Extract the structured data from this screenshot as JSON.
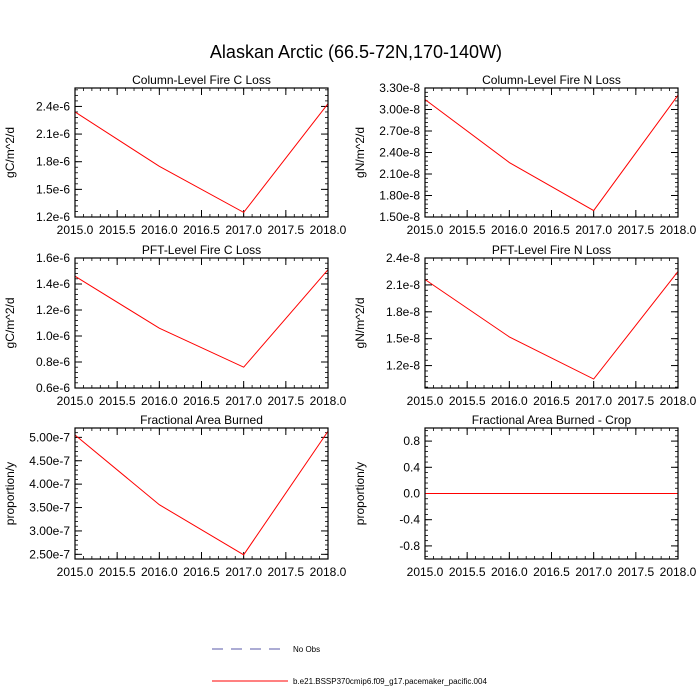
{
  "figure_title": "Alaskan Arctic (66.5-72N,170-140W)",
  "colors": {
    "series": "#ff0000",
    "obs": "#5a5aa8",
    "axis": "#000000",
    "background": "#ffffff"
  },
  "legend": {
    "obs_label": "No Obs",
    "model_label": "b.e21.BSSP370cmip6.f09_g17.pacemaker_pacific.004"
  },
  "chart_data": [
    {
      "type": "line",
      "title": "Column-Level Fire C Loss",
      "ylabel": "gC/m^2/d",
      "xlim": [
        2015.0,
        2018.0
      ],
      "ylim": [
        1.2e-06,
        2.6e-06
      ],
      "yticks": [
        1.2e-06,
        1.5e-06,
        1.8e-06,
        2.1e-06,
        2.4e-06
      ],
      "yticklabels": [
        "1.2e-6",
        "1.5e-6",
        "1.8e-6",
        "2.1e-6",
        "2.4e-6"
      ],
      "xticks": [
        2015.0,
        2015.5,
        2016.0,
        2016.5,
        2017.0,
        2017.5,
        2018.0
      ],
      "xticklabels": [
        "2015.0",
        "2015.5",
        "2016.0",
        "2016.5",
        "2017.0",
        "2017.5",
        "2018.0"
      ],
      "series": [
        {
          "x": [
            2015,
            2016,
            2017,
            2018
          ],
          "values": [
            2.34e-06,
            1.75e-06,
            1.25e-06,
            2.43e-06
          ]
        }
      ]
    },
    {
      "type": "line",
      "title": "Column-Level Fire N Loss",
      "ylabel": "gN/m^2/d",
      "xlim": [
        2015.0,
        2018.0
      ],
      "ylim": [
        1.5e-08,
        3.3e-08
      ],
      "yticks": [
        1.5e-08,
        1.8e-08,
        2.1e-08,
        2.4e-08,
        2.7e-08,
        3e-08,
        3.3e-08
      ],
      "yticklabels": [
        "1.50e-8",
        "1.80e-8",
        "2.10e-8",
        "2.40e-8",
        "2.70e-8",
        "3.00e-8",
        "3.30e-8"
      ],
      "xticks": [
        2015.0,
        2015.5,
        2016.0,
        2016.5,
        2017.0,
        2017.5,
        2018.0
      ],
      "xticklabels": [
        "2015.0",
        "2015.5",
        "2016.0",
        "2016.5",
        "2017.0",
        "2017.5",
        "2018.0"
      ],
      "series": [
        {
          "x": [
            2015,
            2016,
            2017,
            2018
          ],
          "values": [
            3.14e-08,
            2.26e-08,
            1.59e-08,
            3.2e-08
          ]
        }
      ]
    },
    {
      "type": "line",
      "title": "PFT-Level Fire C Loss",
      "ylabel": "gC/m^2/d",
      "xlim": [
        2015.0,
        2018.0
      ],
      "ylim": [
        6e-07,
        1.6e-06
      ],
      "yticks": [
        6e-07,
        8e-07,
        1e-06,
        1.2e-06,
        1.4e-06,
        1.6e-06
      ],
      "yticklabels": [
        "0.6e-6",
        "0.8e-6",
        "1.0e-6",
        "1.2e-6",
        "1.4e-6",
        "1.6e-6"
      ],
      "xticks": [
        2015.0,
        2015.5,
        2016.0,
        2016.5,
        2017.0,
        2017.5,
        2018.0
      ],
      "xticklabels": [
        "2015.0",
        "2015.5",
        "2016.0",
        "2016.5",
        "2017.0",
        "2017.5",
        "2018.0"
      ],
      "series": [
        {
          "x": [
            2015,
            2016,
            2017,
            2018
          ],
          "values": [
            1.46e-06,
            1.06e-06,
            7.6e-07,
            1.51e-06
          ]
        }
      ]
    },
    {
      "type": "line",
      "title": "PFT-Level Fire N Loss",
      "ylabel": "gN/m^2/d",
      "xlim": [
        2015.0,
        2018.0
      ],
      "ylim": [
        9.5e-09,
        2.4e-08
      ],
      "yticks": [
        1.2e-08,
        1.5e-08,
        1.8e-08,
        2.1e-08,
        2.4e-08
      ],
      "yticklabels": [
        "1.2e-8",
        "1.5e-8",
        "1.8e-8",
        "2.1e-8",
        "2.4e-8"
      ],
      "xticks": [
        2015.0,
        2015.5,
        2016.0,
        2016.5,
        2017.0,
        2017.5,
        2018.0
      ],
      "xticklabels": [
        "2015.0",
        "2015.5",
        "2016.0",
        "2016.5",
        "2017.0",
        "2017.5",
        "2018.0"
      ],
      "series": [
        {
          "x": [
            2015,
            2016,
            2017,
            2018
          ],
          "values": [
            2.16e-08,
            1.52e-08,
            1.05e-08,
            2.25e-08
          ]
        }
      ]
    },
    {
      "type": "line",
      "title": "Fractional Area Burned",
      "ylabel": "proportion/y",
      "xlim": [
        2015.0,
        2018.0
      ],
      "ylim": [
        2.4e-07,
        5.2e-07
      ],
      "yticks": [
        2.5e-07,
        3e-07,
        3.5e-07,
        4e-07,
        4.5e-07,
        5e-07
      ],
      "yticklabels": [
        "2.50e-7",
        "3.00e-7",
        "3.50e-7",
        "4.00e-7",
        "4.50e-7",
        "5.00e-7"
      ],
      "xticks": [
        2015.0,
        2015.5,
        2016.0,
        2016.5,
        2017.0,
        2017.5,
        2018.0
      ],
      "xticklabels": [
        "2015.0",
        "2015.5",
        "2016.0",
        "2016.5",
        "2017.0",
        "2017.5",
        "2018.0"
      ],
      "series": [
        {
          "x": [
            2015,
            2016,
            2017,
            2018
          ],
          "values": [
            5.05e-07,
            3.56e-07,
            2.49e-07,
            5.13e-07
          ]
        }
      ]
    },
    {
      "type": "line",
      "title": "Fractional Area Burned - Crop",
      "ylabel": "proportion/y",
      "xlim": [
        2015.0,
        2018.0
      ],
      "ylim": [
        -1.0,
        1.0
      ],
      "yticks": [
        -0.8,
        -0.4,
        0.0,
        0.4,
        0.8
      ],
      "yticklabels": [
        "-0.8",
        "-0.4",
        "0.0",
        "0.4",
        "0.8"
      ],
      "xticks": [
        2015.0,
        2015.5,
        2016.0,
        2016.5,
        2017.0,
        2017.5,
        2018.0
      ],
      "xticklabels": [
        "2015.0",
        "2015.5",
        "2016.0",
        "2016.5",
        "2017.0",
        "2017.5",
        "2018.0"
      ],
      "series": [
        {
          "x": [
            2015,
            2016,
            2017,
            2018
          ],
          "values": [
            0,
            0,
            0,
            0
          ]
        }
      ]
    }
  ]
}
